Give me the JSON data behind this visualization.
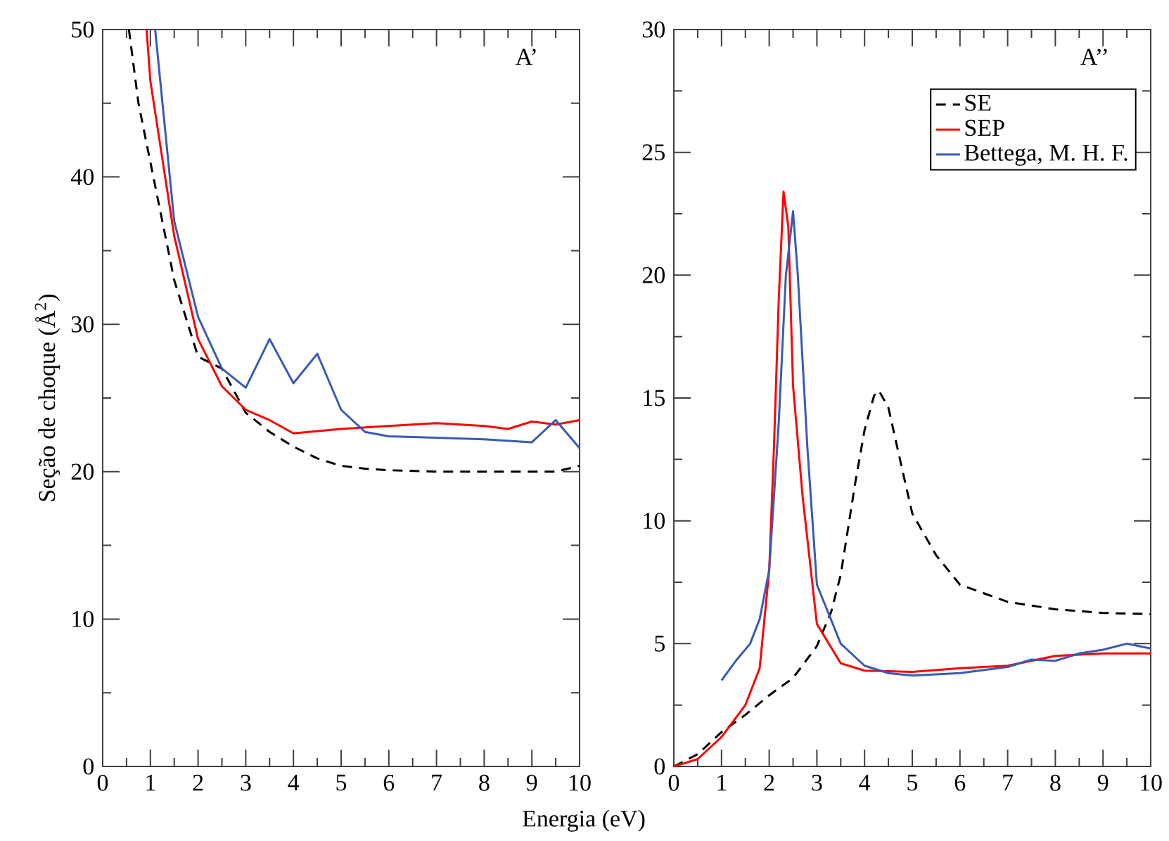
{
  "chart_data": [
    {
      "type": "line",
      "xlabel": "Energia (eV)",
      "ylabel": "Seção de choque (Å$^{2}$)",
      "annotations": [
        "A’"
      ],
      "xlim": [
        0,
        10
      ],
      "ylim": [
        0,
        50
      ],
      "xticks": [
        0,
        1,
        2,
        3,
        4,
        5,
        6,
        7,
        8,
        9,
        10
      ],
      "yticks": [
        0,
        10,
        20,
        30,
        40,
        50
      ],
      "grid": false,
      "legend": false,
      "series": [
        {
          "color": "#000000",
          "line_style": "dashed",
          "x": [
            0.55,
            0.75,
            1,
            1.5,
            2,
            2.5,
            3,
            3.5,
            4,
            4.5,
            5,
            5.5,
            6,
            7,
            8,
            9,
            9.5,
            10
          ],
          "values": [
            50,
            45,
            41,
            33,
            27.8,
            27,
            24,
            22.7,
            21.7,
            20.9,
            20.4,
            20.2,
            20.1,
            20,
            20,
            20,
            20,
            20.4
          ]
        },
        {
          "color": "#ff0000",
          "line_style": "solid",
          "x": [
            0.92,
            1,
            1.5,
            2,
            2.5,
            3,
            3.5,
            4,
            5,
            6,
            7,
            8,
            8.5,
            9,
            9.5,
            10
          ],
          "values": [
            50,
            46.5,
            36,
            29,
            25.8,
            24.2,
            23.5,
            22.6,
            22.9,
            23.1,
            23.3,
            23.1,
            22.9,
            23.4,
            23.2,
            23.5
          ]
        },
        {
          "color": "#3a5bb5",
          "line_style": "solid",
          "x": [
            1.1,
            1.5,
            2,
            2.5,
            3,
            3.5,
            4,
            4.5,
            5,
            5.5,
            6,
            7,
            8,
            9,
            9.5,
            10
          ],
          "values": [
            50,
            37,
            30.5,
            27,
            25.7,
            29,
            26,
            28,
            24.2,
            22.7,
            22.4,
            22.3,
            22.2,
            22,
            23.5,
            21.6
          ]
        }
      ]
    },
    {
      "type": "line",
      "annotations": [
        "A’’"
      ],
      "xlim": [
        0,
        10
      ],
      "ylim": [
        0,
        30
      ],
      "xticks": [
        0,
        1,
        2,
        3,
        4,
        5,
        6,
        7,
        8,
        9,
        10
      ],
      "yticks": [
        0,
        5,
        10,
        15,
        20,
        25,
        30
      ],
      "grid": false,
      "legend": "top right",
      "series": [
        {
          "name": "SE",
          "color": "#000000",
          "line_style": "dashed",
          "x": [
            0,
            0.5,
            1,
            1.5,
            2,
            2.5,
            3,
            3.3,
            3.5,
            3.8,
            4,
            4.2,
            4.3,
            4.5,
            4.8,
            5,
            5.5,
            6,
            7,
            8,
            9,
            10
          ],
          "values": [
            0,
            0.5,
            1.4,
            2.1,
            2.9,
            3.6,
            4.9,
            6.3,
            7.8,
            11.5,
            13.7,
            15.1,
            15.3,
            14.6,
            12,
            10.3,
            8.6,
            7.4,
            6.7,
            6.4,
            6.25,
            6.2
          ]
        },
        {
          "name": "SEP",
          "color": "#ff0000",
          "line_style": "solid",
          "x": [
            0,
            0.5,
            1,
            1.5,
            1.8,
            2,
            2.1,
            2.2,
            2.3,
            2.4,
            2.5,
            2.7,
            3,
            3.5,
            4,
            5,
            6,
            7,
            8,
            9,
            10
          ],
          "values": [
            0,
            0.3,
            1.2,
            2.5,
            4,
            8,
            13,
            19,
            23.4,
            22,
            15.5,
            11,
            5.8,
            4.2,
            3.9,
            3.85,
            4,
            4.1,
            4.5,
            4.6,
            4.6
          ]
        },
        {
          "name": "Bettega, M. H. F.",
          "color": "#3a5bb5",
          "line_style": "solid",
          "x": [
            1,
            1.3,
            1.6,
            1.8,
            2,
            2.2,
            2.35,
            2.5,
            2.6,
            2.8,
            3,
            3.5,
            4,
            4.5,
            5,
            6,
            7,
            7.5,
            8,
            8.5,
            9,
            9.5,
            10
          ],
          "values": [
            3.5,
            4.3,
            5,
            6,
            8,
            14,
            20,
            22.6,
            20,
            13,
            7.4,
            5,
            4.1,
            3.8,
            3.7,
            3.8,
            4.05,
            4.35,
            4.3,
            4.6,
            4.75,
            5,
            4.8
          ]
        }
      ]
    }
  ]
}
